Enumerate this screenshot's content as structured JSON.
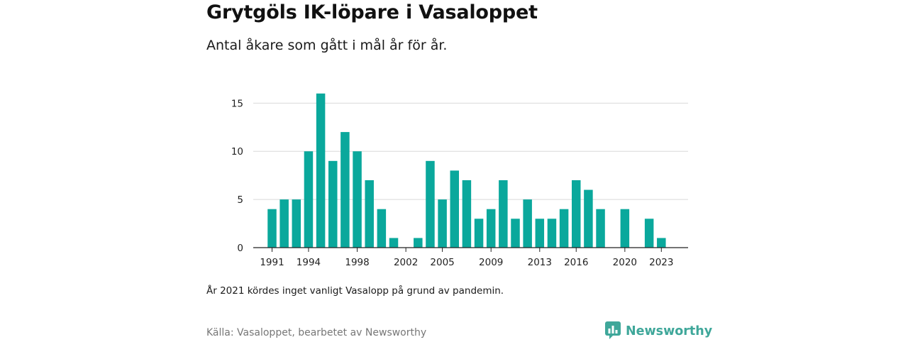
{
  "title": "Grytgöls IK-löpare i Vasaloppet",
  "subtitle": "Antal åkare som gått i mål år för år.",
  "note": "År 2021 kördes inget vanligt Vasalopp på grund av pandemin.",
  "source": "Källa: Vasaloppet, bearbetet av Newsworthy",
  "brand": {
    "name": "Newsworthy",
    "color": "#3fa79a"
  },
  "chart_data": {
    "type": "bar",
    "x": [
      1991,
      1992,
      1993,
      1994,
      1995,
      1996,
      1997,
      1998,
      1999,
      2000,
      2001,
      2002,
      2003,
      2004,
      2005,
      2006,
      2007,
      2008,
      2009,
      2010,
      2011,
      2012,
      2013,
      2014,
      2015,
      2016,
      2017,
      2018,
      2019,
      2020,
      2021,
      2022,
      2023
    ],
    "values": [
      4,
      5,
      5,
      10,
      16,
      9,
      12,
      10,
      7,
      4,
      1,
      0,
      1,
      9,
      5,
      8,
      7,
      3,
      4,
      7,
      3,
      5,
      3,
      3,
      4,
      7,
      6,
      4,
      0,
      4,
      0,
      3,
      1
    ],
    "x_tick_labels": [
      "1991",
      "1994",
      "1998",
      "2002",
      "2005",
      "2009",
      "2013",
      "2016",
      "2020",
      "2023"
    ],
    "y_ticks": [
      0,
      5,
      10,
      15
    ],
    "ylim": [
      0,
      16.5
    ],
    "bar_color": "#0aa89c",
    "grid": true,
    "xlabel": "",
    "ylabel": ""
  }
}
